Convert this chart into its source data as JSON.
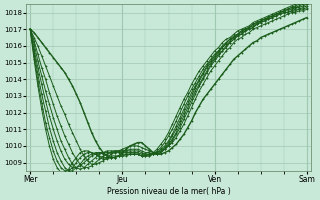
{
  "bg_color": "#c8e8d8",
  "grid_color": "#a0c8b0",
  "line_color": "#1a5c1a",
  "ylim": [
    1008.5,
    1018.5
  ],
  "yticks": [
    1009,
    1010,
    1011,
    1012,
    1013,
    1014,
    1015,
    1016,
    1017,
    1018
  ],
  "xlabel": "Pression niveau de la mer( hPa )",
  "day_labels": [
    "Mer",
    "Jeu",
    "Ven",
    "Sam"
  ],
  "n_points": 73,
  "series": [
    [
      1017.0,
      1016.8,
      1016.5,
      1016.2,
      1015.9,
      1015.6,
      1015.3,
      1015.0,
      1014.7,
      1014.4,
      1014.0,
      1013.6,
      1013.1,
      1012.6,
      1012.0,
      1011.4,
      1010.8,
      1010.3,
      1009.9,
      1009.6,
      1009.4,
      1009.3,
      1009.3,
      1009.4,
      1009.6,
      1009.8,
      1010.0,
      1010.1,
      1010.2,
      1010.2,
      1010.0,
      1009.8,
      1009.6,
      1009.5,
      1009.5,
      1009.6,
      1009.7,
      1009.9,
      1010.1,
      1010.4,
      1010.7,
      1011.1,
      1011.5,
      1012.0,
      1012.4,
      1012.8,
      1013.1,
      1013.4,
      1013.7,
      1014.0,
      1014.3,
      1014.6,
      1014.9,
      1015.2,
      1015.4,
      1015.6,
      1015.8,
      1016.0,
      1016.2,
      1016.3,
      1016.5,
      1016.6,
      1016.7,
      1016.8,
      1016.9,
      1017.0,
      1017.1,
      1017.2,
      1017.3,
      1017.4,
      1017.5,
      1017.6,
      1017.7
    ],
    [
      1017.0,
      1016.5,
      1016.0,
      1015.4,
      1014.8,
      1014.2,
      1013.6,
      1013.0,
      1012.4,
      1011.9,
      1011.3,
      1010.8,
      1010.3,
      1009.8,
      1009.4,
      1009.1,
      1008.9,
      1008.9,
      1009.0,
      1009.1,
      1009.3,
      1009.5,
      1009.6,
      1009.7,
      1009.8,
      1009.9,
      1010.0,
      1010.0,
      1010.0,
      1009.9,
      1009.8,
      1009.7,
      1009.6,
      1009.6,
      1009.7,
      1009.8,
      1010.0,
      1010.2,
      1010.5,
      1010.9,
      1011.3,
      1011.8,
      1012.3,
      1012.8,
      1013.3,
      1013.7,
      1014.1,
      1014.5,
      1014.8,
      1015.1,
      1015.4,
      1015.7,
      1015.9,
      1016.2,
      1016.4,
      1016.5,
      1016.7,
      1016.8,
      1017.0,
      1017.1,
      1017.2,
      1017.3,
      1017.4,
      1017.5,
      1017.6,
      1017.7,
      1017.8,
      1017.9,
      1018.0,
      1018.0,
      1018.1,
      1018.1,
      1018.2
    ],
    [
      1017.0,
      1016.3,
      1015.5,
      1014.7,
      1014.0,
      1013.2,
      1012.5,
      1011.8,
      1011.2,
      1010.6,
      1010.1,
      1009.6,
      1009.2,
      1008.9,
      1008.7,
      1008.7,
      1008.8,
      1009.0,
      1009.2,
      1009.4,
      1009.5,
      1009.6,
      1009.7,
      1009.7,
      1009.7,
      1009.7,
      1009.8,
      1009.8,
      1009.8,
      1009.7,
      1009.6,
      1009.6,
      1009.5,
      1009.5,
      1009.6,
      1009.8,
      1010.0,
      1010.3,
      1010.7,
      1011.1,
      1011.6,
      1012.1,
      1012.6,
      1013.1,
      1013.6,
      1014.0,
      1014.4,
      1014.8,
      1015.1,
      1015.4,
      1015.7,
      1015.9,
      1016.2,
      1016.4,
      1016.6,
      1016.7,
      1016.9,
      1017.0,
      1017.1,
      1017.3,
      1017.4,
      1017.5,
      1017.6,
      1017.7,
      1017.8,
      1017.9,
      1018.0,
      1018.0,
      1018.1,
      1018.1,
      1018.2,
      1018.2,
      1018.3
    ],
    [
      1017.0,
      1016.1,
      1015.1,
      1014.2,
      1013.3,
      1012.5,
      1011.7,
      1011.0,
      1010.3,
      1009.8,
      1009.3,
      1008.9,
      1008.7,
      1008.6,
      1008.7,
      1008.9,
      1009.1,
      1009.3,
      1009.5,
      1009.6,
      1009.7,
      1009.7,
      1009.7,
      1009.7,
      1009.7,
      1009.7,
      1009.7,
      1009.7,
      1009.7,
      1009.6,
      1009.5,
      1009.5,
      1009.5,
      1009.5,
      1009.6,
      1009.8,
      1010.1,
      1010.4,
      1010.8,
      1011.3,
      1011.8,
      1012.3,
      1012.8,
      1013.3,
      1013.7,
      1014.1,
      1014.5,
      1014.9,
      1015.2,
      1015.5,
      1015.7,
      1016.0,
      1016.2,
      1016.4,
      1016.6,
      1016.7,
      1016.9,
      1017.0,
      1017.1,
      1017.3,
      1017.4,
      1017.5,
      1017.6,
      1017.7,
      1017.8,
      1017.9,
      1018.0,
      1018.0,
      1018.1,
      1018.2,
      1018.2,
      1018.3,
      1018.4
    ],
    [
      1017.0,
      1015.8,
      1014.7,
      1013.7,
      1012.7,
      1011.8,
      1011.0,
      1010.3,
      1009.7,
      1009.2,
      1008.9,
      1008.7,
      1008.7,
      1008.8,
      1009.0,
      1009.2,
      1009.4,
      1009.5,
      1009.6,
      1009.6,
      1009.6,
      1009.6,
      1009.6,
      1009.6,
      1009.6,
      1009.6,
      1009.6,
      1009.6,
      1009.6,
      1009.5,
      1009.5,
      1009.5,
      1009.5,
      1009.5,
      1009.7,
      1009.9,
      1010.2,
      1010.6,
      1011.0,
      1011.5,
      1012.0,
      1012.5,
      1013.0,
      1013.5,
      1013.9,
      1014.3,
      1014.7,
      1015.0,
      1015.3,
      1015.6,
      1015.9,
      1016.1,
      1016.3,
      1016.5,
      1016.7,
      1016.8,
      1017.0,
      1017.1,
      1017.2,
      1017.3,
      1017.5,
      1017.6,
      1017.7,
      1017.8,
      1017.9,
      1018.0,
      1018.1,
      1018.1,
      1018.2,
      1018.3,
      1018.3,
      1018.4,
      1018.5
    ],
    [
      1017.0,
      1015.6,
      1014.3,
      1013.1,
      1012.1,
      1011.1,
      1010.3,
      1009.6,
      1009.1,
      1008.7,
      1008.5,
      1008.5,
      1008.7,
      1008.9,
      1009.2,
      1009.4,
      1009.5,
      1009.6,
      1009.6,
      1009.5,
      1009.4,
      1009.4,
      1009.4,
      1009.4,
      1009.4,
      1009.4,
      1009.5,
      1009.5,
      1009.5,
      1009.4,
      1009.4,
      1009.4,
      1009.5,
      1009.6,
      1009.8,
      1010.0,
      1010.3,
      1010.7,
      1011.2,
      1011.7,
      1012.2,
      1012.7,
      1013.2,
      1013.6,
      1014.0,
      1014.4,
      1014.8,
      1015.1,
      1015.4,
      1015.7,
      1015.9,
      1016.2,
      1016.4,
      1016.6,
      1016.7,
      1016.9,
      1017.0,
      1017.1,
      1017.3,
      1017.4,
      1017.5,
      1017.6,
      1017.7,
      1017.8,
      1017.9,
      1018.0,
      1018.1,
      1018.2,
      1018.3,
      1018.3,
      1018.4,
      1018.5,
      1018.6
    ],
    [
      1017.0,
      1015.4,
      1013.9,
      1012.6,
      1011.4,
      1010.5,
      1009.7,
      1009.1,
      1008.7,
      1008.5,
      1008.5,
      1008.7,
      1009.0,
      1009.3,
      1009.5,
      1009.6,
      1009.6,
      1009.5,
      1009.4,
      1009.3,
      1009.3,
      1009.3,
      1009.3,
      1009.4,
      1009.4,
      1009.5,
      1009.5,
      1009.5,
      1009.5,
      1009.4,
      1009.4,
      1009.4,
      1009.5,
      1009.7,
      1009.9,
      1010.2,
      1010.6,
      1011.0,
      1011.5,
      1012.0,
      1012.5,
      1013.0,
      1013.4,
      1013.8,
      1014.2,
      1014.6,
      1014.9,
      1015.2,
      1015.5,
      1015.7,
      1016.0,
      1016.2,
      1016.4,
      1016.5,
      1016.7,
      1016.9,
      1017.0,
      1017.1,
      1017.3,
      1017.4,
      1017.5,
      1017.6,
      1017.7,
      1017.8,
      1017.9,
      1018.0,
      1018.1,
      1018.2,
      1018.3,
      1018.4,
      1018.5,
      1018.6,
      1018.7
    ],
    [
      1017.0,
      1015.2,
      1013.6,
      1012.2,
      1011.0,
      1010.0,
      1009.2,
      1008.7,
      1008.4,
      1008.4,
      1008.6,
      1009.0,
      1009.3,
      1009.6,
      1009.7,
      1009.7,
      1009.6,
      1009.5,
      1009.3,
      1009.2,
      1009.2,
      1009.3,
      1009.3,
      1009.4,
      1009.5,
      1009.5,
      1009.5,
      1009.5,
      1009.5,
      1009.4,
      1009.4,
      1009.5,
      1009.6,
      1009.8,
      1010.1,
      1010.4,
      1010.8,
      1011.3,
      1011.8,
      1012.3,
      1012.8,
      1013.2,
      1013.7,
      1014.1,
      1014.5,
      1014.8,
      1015.1,
      1015.4,
      1015.7,
      1015.9,
      1016.2,
      1016.4,
      1016.5,
      1016.7,
      1016.9,
      1017.0,
      1017.1,
      1017.2,
      1017.4,
      1017.5,
      1017.6,
      1017.7,
      1017.8,
      1017.9,
      1018.0,
      1018.1,
      1018.2,
      1018.3,
      1018.4,
      1018.5,
      1018.6,
      1018.7,
      1018.8
    ]
  ]
}
